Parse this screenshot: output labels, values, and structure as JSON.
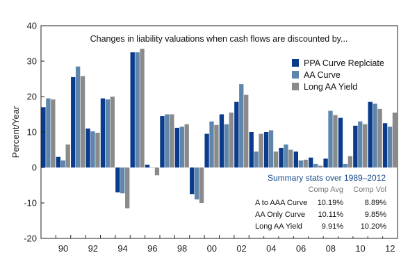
{
  "chart_data": {
    "type": "bar",
    "title": "Changes in liability valuations when cash flows are discounted by...",
    "xlabel": "",
    "ylabel": "Percent/Year",
    "ylim": [
      -20,
      40
    ],
    "yticks": [
      -20,
      -10,
      0,
      10,
      20,
      30,
      40
    ],
    "ytick_labels": [
      "-20",
      "-10",
      "0",
      "10",
      "20",
      "30",
      "40"
    ],
    "categories": [
      1989,
      1990,
      1991,
      1992,
      1993,
      1994,
      1995,
      1996,
      1997,
      1998,
      1999,
      2000,
      2001,
      2002,
      2003,
      2004,
      2005,
      2006,
      2007,
      2008,
      2009,
      2010,
      2011,
      2012
    ],
    "xtick_labels": [
      {
        "year": 1990,
        "label": "90"
      },
      {
        "year": 1992,
        "label": "92"
      },
      {
        "year": 1994,
        "label": "94"
      },
      {
        "year": 1996,
        "label": "96"
      },
      {
        "year": 1998,
        "label": "98"
      },
      {
        "year": 2000,
        "label": "00"
      },
      {
        "year": 2002,
        "label": "02"
      },
      {
        "year": 2004,
        "label": "04"
      },
      {
        "year": 2006,
        "label": "06"
      },
      {
        "year": 2008,
        "label": "08"
      },
      {
        "year": 2010,
        "label": "10"
      },
      {
        "year": 2012,
        "label": "12"
      }
    ],
    "series": [
      {
        "name": "PPA Curve Replciate",
        "color": "#0b3c8c",
        "values": [
          17,
          3,
          25.5,
          11,
          19.5,
          -7,
          32.5,
          0.8,
          14.5,
          11.2,
          -7.5,
          9.5,
          15,
          18.5,
          10,
          10,
          5.5,
          4.5,
          2.8,
          2.5,
          14,
          11.8,
          18.5,
          12.5
        ]
      },
      {
        "name": "AA Curve",
        "color": "#5e86ac",
        "values": [
          19.5,
          2,
          28.5,
          10.2,
          19.2,
          -7.3,
          32.5,
          0,
          15,
          11.5,
          -9,
          13,
          12.2,
          23.5,
          4.5,
          10.5,
          6.5,
          2,
          1,
          16,
          1,
          13,
          18,
          11.5
        ]
      },
      {
        "name": "Long AA Yield",
        "color": "#8a8a8a",
        "values": [
          19.2,
          6.5,
          25.8,
          9.8,
          20,
          -11.5,
          33.5,
          -2.2,
          15,
          12.2,
          -10,
          12,
          15.5,
          20.5,
          9.5,
          4.5,
          5,
          2.2,
          0.5,
          14.8,
          3.2,
          12.2,
          16.5,
          15.5
        ]
      }
    ],
    "legend_position": "top-right",
    "grid": false,
    "summary_stats": {
      "title": "Summary stats over 1989–2012",
      "headers": [
        "",
        "Comp Avg",
        "Comp Vol"
      ],
      "rows": [
        [
          "A to AAA Curve",
          "10.19%",
          "8.89%"
        ],
        [
          "AA Only Curve",
          "10.11%",
          "9.85%"
        ],
        [
          "Long AA Yield",
          "9.91%",
          "10.20%"
        ]
      ]
    }
  }
}
